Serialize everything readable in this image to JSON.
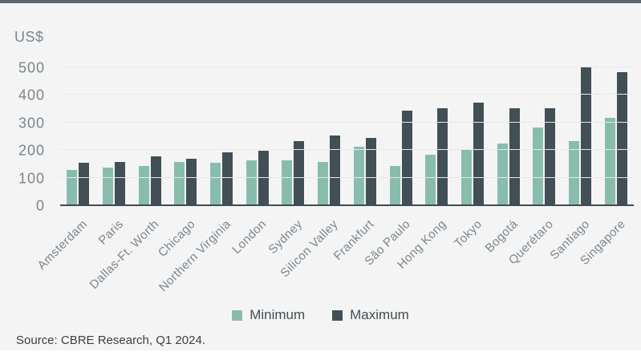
{
  "colors": {
    "page_bg": "#ffffff",
    "panel_bg": "#f4f4f5",
    "accent_bar": "#5d686e",
    "gridline": "#e8e9ea",
    "axis_line": "#3e4b50",
    "tick_text": "#79868d",
    "legend_text": "#424d52",
    "source_text": "#3a4043",
    "minimum_series": "#88bdae",
    "maximum_series": "#424f55"
  },
  "chart_data": {
    "type": "bar",
    "title": "",
    "unit_label": "US$",
    "categories": [
      "Amsterdam",
      "Paris",
      "Dallas-Ft. Worth",
      "Chicago",
      "Northern Virginia",
      "London",
      "Sydney",
      "Silicon Valley",
      "Frankfurt",
      "São Paulo",
      "Hong Kong",
      "Tokyo",
      "Bogotá",
      "Querétaro",
      "Santiago",
      "Singapore"
    ],
    "series": [
      {
        "name": "Minimum",
        "color": "#88bdae",
        "values": [
          125,
          135,
          140,
          155,
          150,
          160,
          160,
          155,
          210,
          140,
          180,
          200,
          220,
          280,
          230,
          315
        ]
      },
      {
        "name": "Maximum",
        "color": "#424f55",
        "values": [
          150,
          155,
          175,
          165,
          190,
          195,
          230,
          250,
          240,
          340,
          350,
          370,
          350,
          350,
          500,
          480
        ]
      }
    ],
    "ylim": [
      0,
      500
    ],
    "yticks": [
      0,
      100,
      200,
      300,
      400,
      500
    ],
    "grid": true,
    "legend_position": "bottom"
  },
  "footer": {
    "source": "Source: CBRE Research, Q1 2024."
  }
}
